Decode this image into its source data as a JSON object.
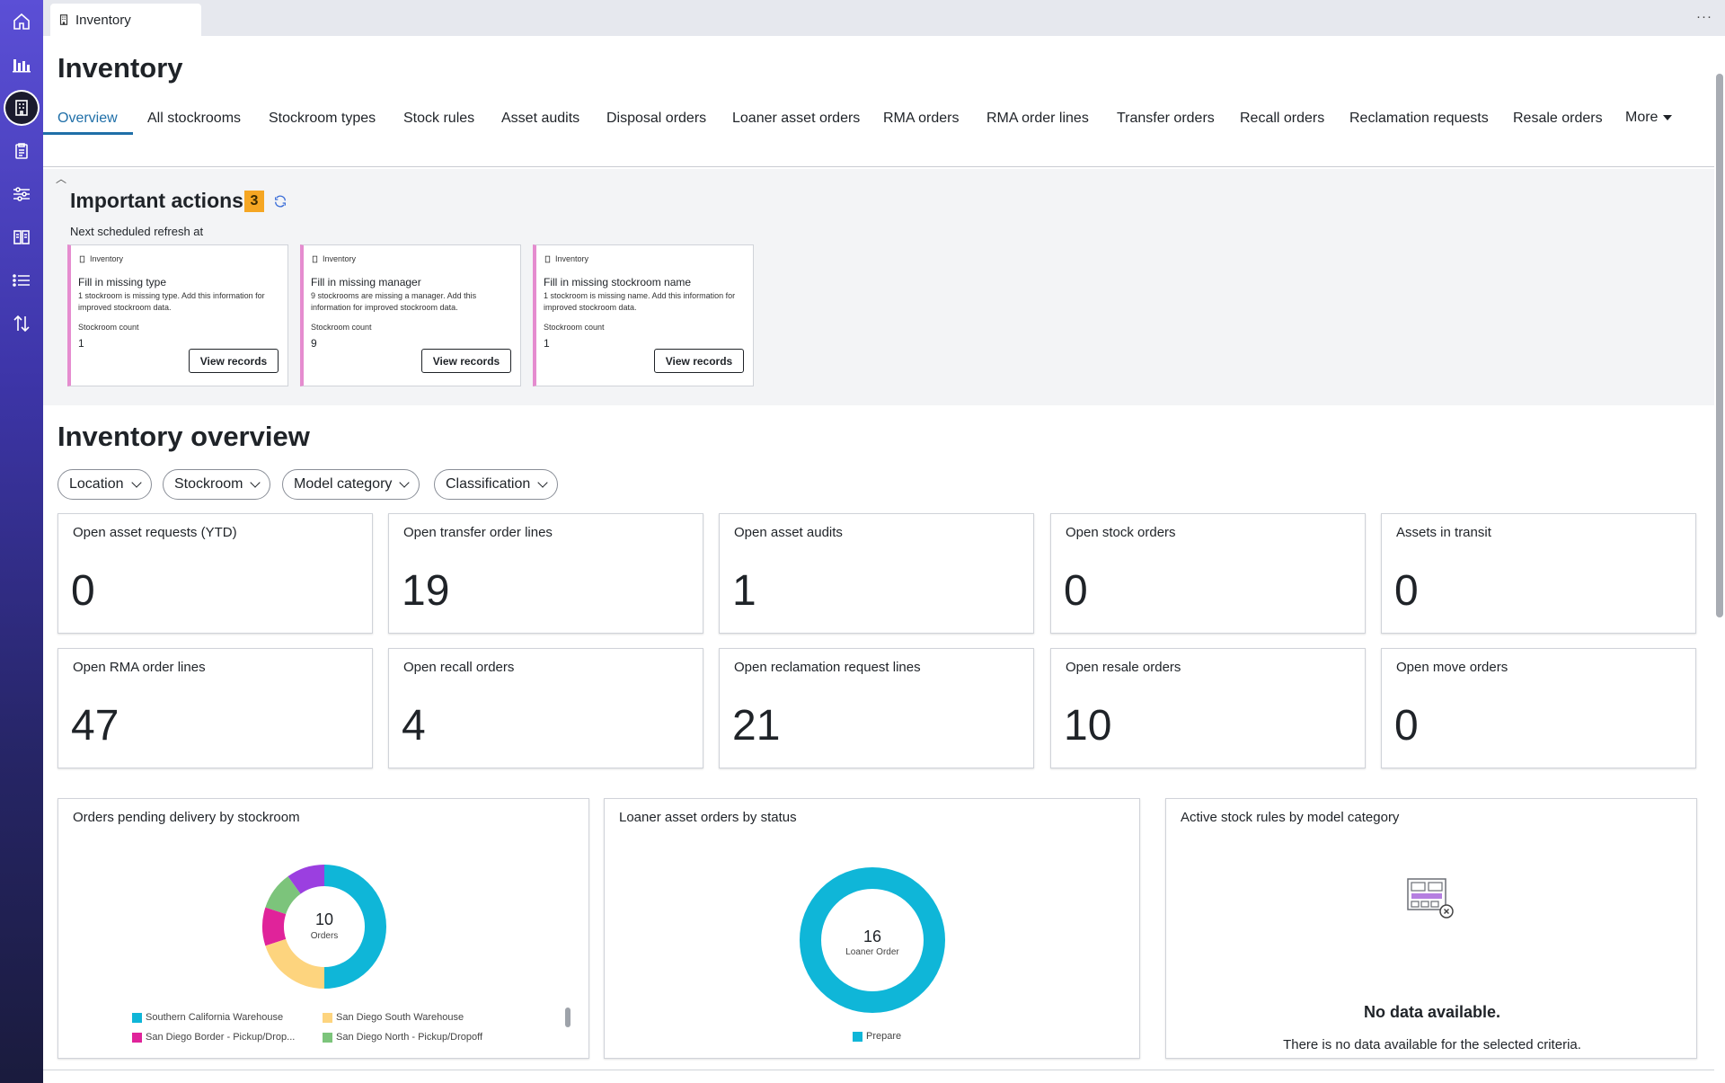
{
  "tab": {
    "label": "Inventory"
  },
  "header": {
    "title": "Inventory"
  },
  "nav": {
    "items": [
      "Overview",
      "All stockrooms",
      "Stockroom types",
      "Stock rules",
      "Asset audits",
      "Disposal orders",
      "Loaner asset orders",
      "RMA orders",
      "RMA order lines",
      "Transfer orders",
      "Recall orders",
      "Reclamation requests",
      "Resale orders"
    ],
    "more": "More"
  },
  "important_actions": {
    "title": "Important actions",
    "count": "3",
    "subtitle": "Next scheduled refresh at",
    "cards": [
      {
        "source": "Inventory",
        "title": "Fill in missing type",
        "description": "1 stockroom is missing type. Add this information for improved stockroom data.",
        "count_label": "Stockroom count",
        "count": "1",
        "button": "View records"
      },
      {
        "source": "Inventory",
        "title": "Fill in missing manager",
        "description": "9 stockrooms are missing a manager. Add this information for improved stockroom data.",
        "count_label": "Stockroom count",
        "count": "9",
        "button": "View records"
      },
      {
        "source": "Inventory",
        "title": "Fill in missing stockroom name",
        "description": "1 stockroom is missing name. Add this information for improved stockroom data.",
        "count_label": "Stockroom count",
        "count": "1",
        "button": "View records"
      }
    ]
  },
  "overview": {
    "title": "Inventory overview",
    "filters": [
      "Location",
      "Stockroom",
      "Model category",
      "Classification"
    ],
    "metrics": [
      {
        "label": "Open asset requests (YTD)",
        "value": "0"
      },
      {
        "label": "Open transfer order lines",
        "value": "19"
      },
      {
        "label": "Open asset audits",
        "value": "1"
      },
      {
        "label": "Open stock orders",
        "value": "0"
      },
      {
        "label": "Assets in transit",
        "value": "0"
      },
      {
        "label": "Open RMA order lines",
        "value": "47"
      },
      {
        "label": "Open recall orders",
        "value": "4"
      },
      {
        "label": "Open reclamation request lines",
        "value": "21"
      },
      {
        "label": "Open resale orders",
        "value": "10"
      },
      {
        "label": "Open move orders",
        "value": "0"
      }
    ]
  },
  "charts": {
    "orders_pending": {
      "title": "Orders pending delivery by stockroom",
      "center_value": "10",
      "center_label": "Orders",
      "legend": [
        {
          "name": "Southern California Warehouse",
          "color": "#0fb6d8"
        },
        {
          "name": "San Diego South Warehouse",
          "color": "#fdd47e"
        },
        {
          "name": "San Diego Border - Pickup/Drop...",
          "color": "#e0239a"
        },
        {
          "name": "San Diego North - Pickup/Dropoff",
          "color": "#7cc47b"
        }
      ]
    },
    "loaner": {
      "title": "Loaner asset orders by status",
      "center_value": "16",
      "center_label": "Loaner Order",
      "legend": [
        {
          "name": "Prepare",
          "color": "#0fb6d8"
        }
      ]
    },
    "stock_rules": {
      "title": "Active stock rules by model category",
      "empty_title": "No data available.",
      "empty_text": "There is no data available for the selected criteria."
    }
  },
  "chart_data": [
    {
      "type": "pie",
      "title": "Orders pending delivery by stockroom",
      "total": 10,
      "categories": [
        "Southern California Warehouse",
        "San Diego South Warehouse",
        "San Diego Border - Pickup/Drop...",
        "San Diego North - Pickup/Dropoff",
        "(unlabeled purple)"
      ],
      "values": [
        5,
        2,
        1,
        1,
        1
      ],
      "colors": [
        "#0fb6d8",
        "#fdd47e",
        "#e0239a",
        "#7cc47b",
        "#9b3fe0"
      ]
    },
    {
      "type": "pie",
      "title": "Loaner asset orders by status",
      "total": 16,
      "categories": [
        "Prepare"
      ],
      "values": [
        16
      ],
      "colors": [
        "#0fb6d8"
      ]
    }
  ]
}
